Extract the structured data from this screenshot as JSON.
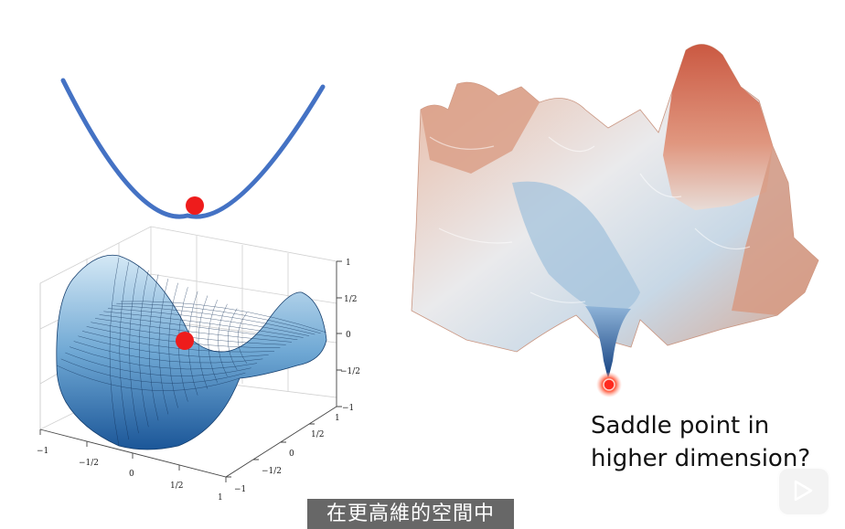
{
  "caption": {
    "line1": "Saddle point in",
    "line2": "higher dimension?"
  },
  "subtitle": "在更高維的空間中",
  "axes": {
    "x_ticks": [
      "−1",
      "−1/2",
      "0",
      "1/2",
      "1"
    ],
    "y_ticks": [
      "−1",
      "−1/2",
      "0",
      "1/2",
      "1"
    ],
    "z_ticks": [
      "1",
      "1/2",
      "0",
      "−1/2",
      "−1"
    ]
  },
  "colors": {
    "curve": "#4472c4",
    "ball": "#ee1c1c",
    "surface_top": "#c9e2f3",
    "surface_bottom": "#1f5c9e"
  },
  "icons": {
    "play": "play-icon"
  }
}
